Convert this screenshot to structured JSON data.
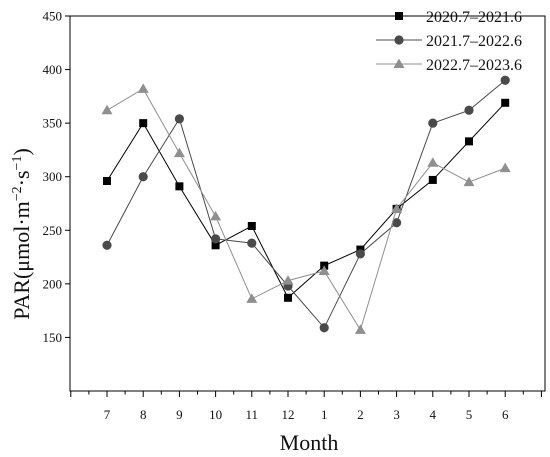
{
  "chart_data": {
    "type": "line",
    "categories": [
      "7",
      "8",
      "9",
      "10",
      "11",
      "12",
      "1",
      "2",
      "3",
      "4",
      "5",
      "6"
    ],
    "xlabel": "Month",
    "ylabel_main": "PAR(μmol·m",
    "ylabel_sup1": "−2",
    "ylabel_mid": "·s",
    "ylabel_sup2": "−1",
    "ylabel_end": ")",
    "ylim": [
      100,
      450
    ],
    "yticks": [
      150,
      200,
      250,
      300,
      350,
      400,
      450
    ],
    "grid": false,
    "legend_position": "top-right",
    "series": [
      {
        "name": "2020.7–2021.6",
        "marker": "square",
        "color": "#000000",
        "values": [
          296,
          350,
          291,
          236,
          254,
          187,
          217,
          232,
          270,
          297,
          333,
          369
        ]
      },
      {
        "name": "2021.7–2022.6",
        "marker": "circle",
        "color": "#4a4a4a",
        "values": [
          236,
          300,
          354,
          242,
          238,
          198,
          159,
          228,
          257,
          350,
          362,
          390
        ]
      },
      {
        "name": "2022.7–2023.6",
        "marker": "triangle",
        "color": "#8f8f8f",
        "values": [
          362,
          382,
          322,
          263,
          186,
          203,
          212,
          157,
          270,
          313,
          295,
          308
        ]
      }
    ]
  }
}
